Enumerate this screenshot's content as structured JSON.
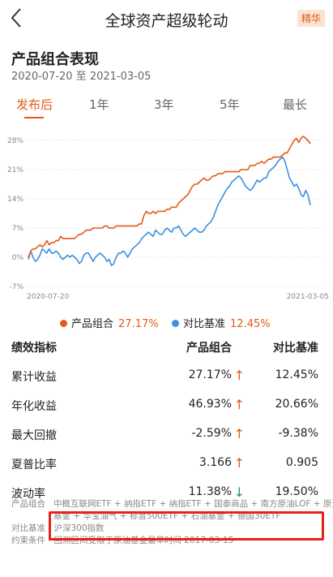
{
  "header": {
    "title": "全球资产超级轮动",
    "badge": "精华"
  },
  "portfolio": {
    "heading": "产品组合表现",
    "date_range": "2020-07-20 至 2021-03-05"
  },
  "tabs": [
    {
      "label": "发布后",
      "active": true
    },
    {
      "label": "1年",
      "active": false
    },
    {
      "label": "3年",
      "active": false
    },
    {
      "label": "5年",
      "active": false
    },
    {
      "label": "最长",
      "active": false
    }
  ],
  "chart_data": {
    "type": "line",
    "x_start": "2020-07-20",
    "x_end": "2021-03-05",
    "y_ticks": [
      "28%",
      "21%",
      "14%",
      "7%",
      "0%",
      "-7%"
    ],
    "ylim": [
      -7,
      28
    ],
    "series": [
      {
        "name": "产品组合",
        "color": "#e25b18",
        "end_value": "27.17%",
        "values": [
          0,
          1.5,
          2,
          2,
          2.5,
          3,
          2.5,
          3,
          4,
          3,
          3.5,
          3.5,
          4,
          4,
          5,
          4.5,
          4.5,
          4.5,
          4.5,
          4.5,
          4.5,
          5,
          5.5,
          5.5,
          6,
          6.5,
          6.5,
          6.5,
          7,
          7,
          7,
          7,
          7,
          7.5,
          7.5,
          7,
          7,
          7,
          7.5,
          7.5,
          7.5,
          7.5,
          7.5,
          7.5,
          7.5,
          7.5,
          7.5,
          7.5,
          8,
          8,
          10,
          11,
          10.5,
          10.5,
          11,
          10.5,
          11,
          11,
          11,
          11,
          11.5,
          11.5,
          12,
          12,
          12,
          13,
          13.5,
          14,
          14.5,
          15,
          16,
          17,
          17.5,
          17.5,
          18,
          18.5,
          19,
          18.5,
          18.5,
          19,
          19.5,
          19.5,
          20,
          20,
          20,
          20.5,
          20.5,
          20.5,
          20.5,
          20.5,
          20.5,
          20.5,
          21,
          21,
          21,
          21,
          22,
          22,
          22,
          22.5,
          22.5,
          23,
          22.5,
          23,
          23.5,
          23.5,
          24,
          24,
          24,
          24,
          24.5,
          25,
          25,
          26,
          27,
          28,
          28.5,
          27.5,
          28.5,
          29,
          28.5,
          28,
          27.17
        ]
      },
      {
        "name": "对比基准",
        "color": "#3d8fe0",
        "end_value": "12.45%",
        "values": [
          -0.5,
          1.5,
          0,
          -1,
          -0.5,
          0.5,
          2,
          1.5,
          1,
          2,
          1,
          1,
          1.5,
          1,
          0,
          -0.5,
          0,
          0.5,
          0,
          0.5,
          0,
          -0.5,
          -1.5,
          -1,
          0.5,
          1,
          1,
          0,
          -1,
          0,
          0.5,
          1,
          0.5,
          0,
          -1,
          -0.5,
          -2,
          -1.5,
          0,
          1,
          1,
          1.5,
          1,
          0,
          1,
          2,
          2.5,
          3,
          3.5,
          4.5,
          5,
          5.5,
          6,
          5.5,
          5,
          6.5,
          6,
          5.5,
          5.5,
          6.5,
          7,
          6.5,
          6,
          7,
          7,
          7.5,
          6.5,
          5.5,
          5,
          5.5,
          6,
          6.5,
          7,
          6.5,
          6,
          6,
          6.5,
          7.5,
          8,
          8.5,
          9.5,
          11,
          12.5,
          13.5,
          14.5,
          15.5,
          16.5,
          17,
          18,
          18.5,
          19,
          19.5,
          19,
          18,
          17,
          16.5,
          16,
          16.5,
          17.5,
          18.5,
          18,
          18.5,
          19,
          19,
          20.5,
          21,
          21.5,
          22,
          23,
          23.5,
          24,
          23,
          21,
          19,
          18,
          17,
          17.5,
          16.5,
          15,
          14.5,
          16,
          15,
          12.45
        ]
      }
    ]
  },
  "performance": {
    "headers": [
      "绩效指标",
      "产品组合",
      "对比基准"
    ],
    "rows": [
      {
        "label": "累计收益",
        "portfolio": "27.17%",
        "arrow": "↑",
        "trend": "up",
        "benchmark": "12.45%"
      },
      {
        "label": "年化收益",
        "portfolio": "46.93%",
        "arrow": "↑",
        "trend": "up",
        "benchmark": "20.66%"
      },
      {
        "label": "最大回撤",
        "portfolio": "-2.59%",
        "arrow": "↑",
        "trend": "up",
        "benchmark": "-9.38%"
      },
      {
        "label": "夏普比率",
        "portfolio": "3.166",
        "arrow": "↑",
        "trend": "up",
        "benchmark": "0.905"
      },
      {
        "label": "波动率",
        "portfolio": "11.38%",
        "arrow": "↓",
        "trend": "down",
        "benchmark": "19.50%"
      }
    ]
  },
  "footer": {
    "composition_label": "产品组合",
    "composition_line1": "中概互联网ETF + 纳指ETF + 纳指ETF + 国泰商品 + 南方原油LOF + 原油",
    "composition_line2": "基金 + 华宝油气 + 标普500ETF + 石油基金 + 德国30ETF",
    "benchmark_line": "对比基准 - 沪深300指数",
    "constraint_line": "约束条件 - 回测区间受限于原油基金最早时间 2017-03-15"
  }
}
